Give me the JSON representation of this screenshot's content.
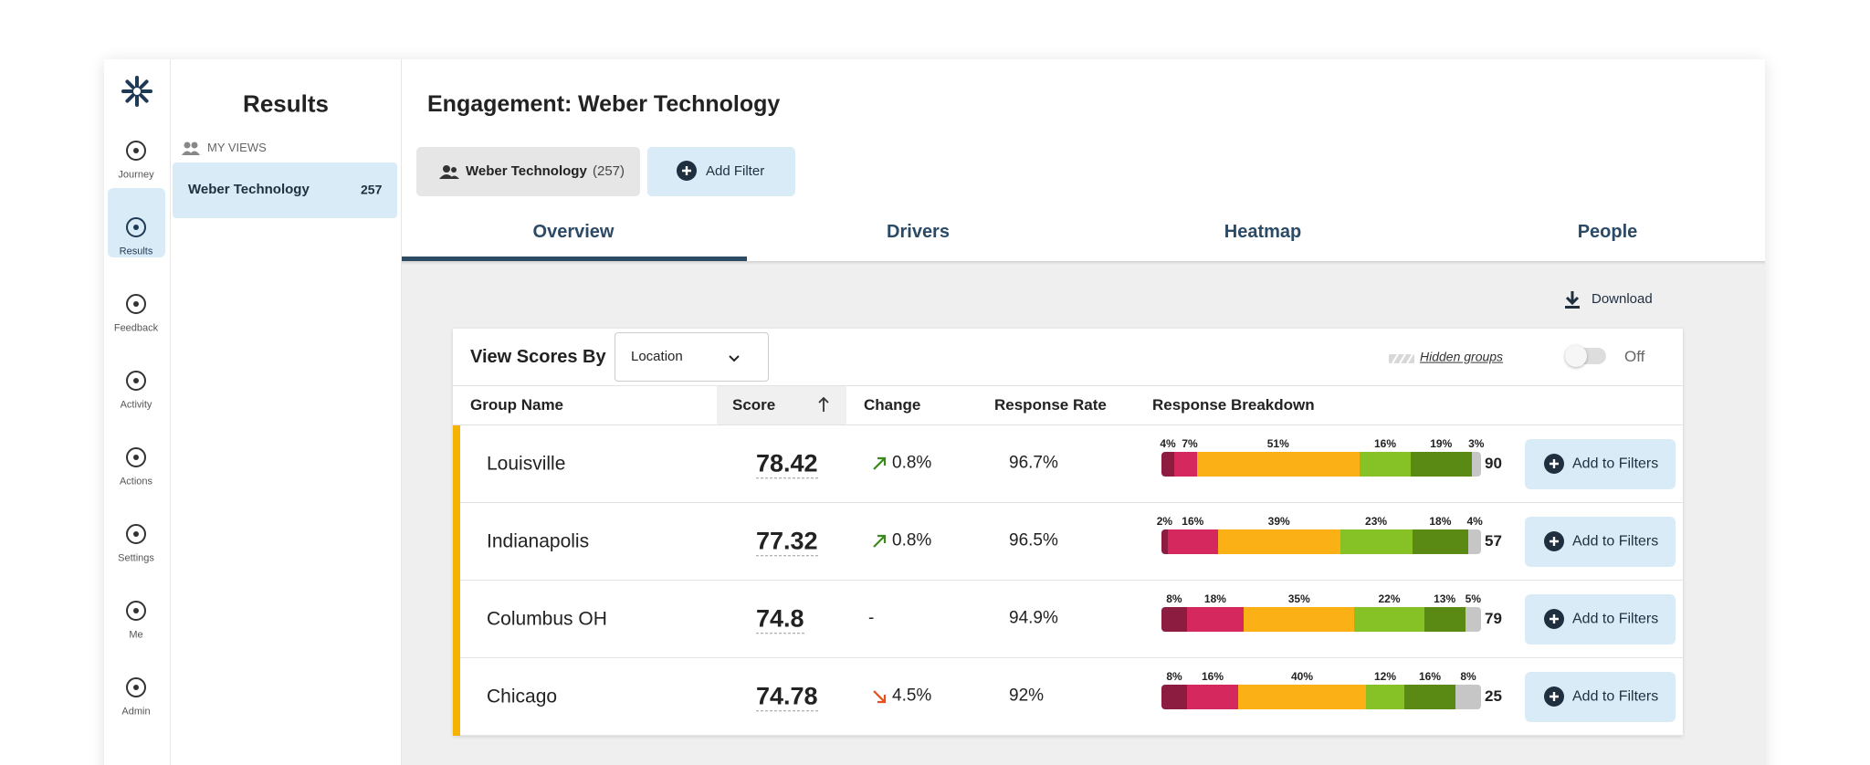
{
  "nav": {
    "items": [
      "Journey",
      "Results",
      "Feedback",
      "Activity",
      "Actions",
      "Settings",
      "Me",
      "Admin"
    ],
    "active": 1
  },
  "sidebar": {
    "title": "Results",
    "section": "MY VIEWS",
    "views": [
      {
        "name": "Weber Technology",
        "count": "257"
      }
    ]
  },
  "header": {
    "label": "Engagement:",
    "title": "Weber Technology",
    "filter": {
      "name": "Weber Technology",
      "count": "(257)"
    },
    "add_filter": "Add Filter"
  },
  "tabs": {
    "items": [
      "Overview",
      "Drivers",
      "Heatmap",
      "People"
    ],
    "active": 0
  },
  "download": "Download",
  "card": {
    "view_by_label": "View Scores By",
    "view_by_value": "Location",
    "hidden_groups": "Hidden groups",
    "toggle": "Off",
    "columns": [
      "Group Name",
      "Score",
      "Change",
      "Response Rate",
      "Response Breakdown"
    ],
    "sort_column": 1,
    "breakdown_colors": [
      "#8c1c40",
      "#d4285e",
      "#fbb116",
      "#86c226",
      "#5a8a13",
      "#c6c6c6"
    ],
    "rows": [
      {
        "name": "Louisville",
        "score": "78.42",
        "change": "0.8%",
        "trend": "up",
        "response_rate": "96.7%",
        "breakdown": {
          "values": [
            4,
            7,
            51,
            16,
            19,
            3
          ],
          "value_labels": [
            "4%",
            "7%",
            "51%",
            "16%",
            "19%",
            "3%"
          ]
        },
        "count": "90",
        "action": "Add to Filters"
      },
      {
        "name": "Indianapolis",
        "score": "77.32",
        "change": "0.8%",
        "trend": "up",
        "response_rate": "96.5%",
        "breakdown": {
          "values": [
            2,
            16,
            39,
            23,
            18,
            4
          ],
          "value_labels": [
            "2%",
            "16%",
            "39%",
            "23%",
            "18%",
            "4%"
          ]
        },
        "count": "57",
        "action": "Add to Filters"
      },
      {
        "name": "Columbus OH",
        "score": "74.8",
        "change": "-",
        "trend": "flat",
        "response_rate": "94.9%",
        "breakdown": {
          "values": [
            8,
            18,
            35,
            22,
            13,
            5
          ],
          "value_labels": [
            "8%",
            "18%",
            "35%",
            "22%",
            "13%",
            "5%"
          ]
        },
        "count": "79",
        "action": "Add to Filters"
      },
      {
        "name": "Chicago",
        "score": "74.78",
        "change": "4.5%",
        "trend": "down",
        "response_rate": "92%",
        "breakdown": {
          "values": [
            8,
            16,
            40,
            12,
            16,
            8
          ],
          "value_labels": [
            "8%",
            "16%",
            "40%",
            "12%",
            "16%",
            "8%"
          ]
        },
        "count": "25",
        "action": "Add to Filters"
      }
    ]
  }
}
